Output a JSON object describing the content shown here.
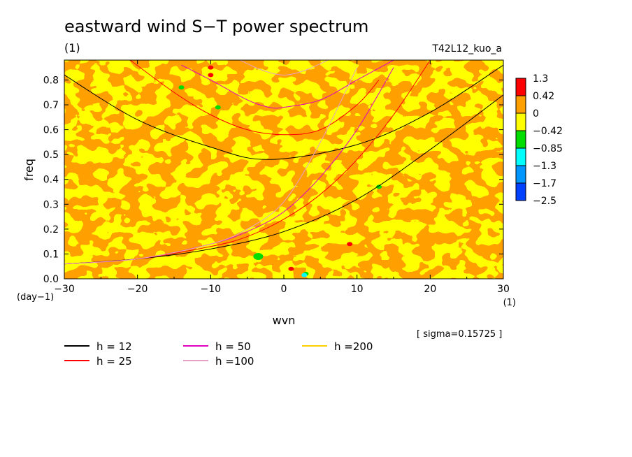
{
  "chart_data": {
    "type": "heatmap",
    "title": "eastward wind S−T power spectrum",
    "subtitle_left": "(1)",
    "subtitle_right": "T42L12_kuo_a",
    "xlabel": "wvn",
    "ylabel": "freq",
    "x_unit": "(1)",
    "y_unit": "(day−1)",
    "xlim": [
      -30,
      30
    ],
    "ylim": [
      0,
      0.88
    ],
    "x_ticks": [
      -30,
      -20,
      -10,
      0,
      10,
      20,
      30
    ],
    "x_tick_labels": [
      "−30",
      "−20",
      "−10",
      "0",
      "10",
      "20",
      "30"
    ],
    "y_ticks": [
      0,
      0.1,
      0.2,
      0.3,
      0.4,
      0.5,
      0.6,
      0.7,
      0.8
    ],
    "y_tick_labels": [
      "0.0",
      "0.1",
      "0.2",
      "0.3",
      "0.4",
      "0.5",
      "0.6",
      "0.7",
      "0.8"
    ],
    "note": "[ sigma=0.15725 ]",
    "colorbar": {
      "labels": [
        "1.3",
        "0.42",
        "0",
        "−0.42",
        "−0.85",
        "−1.3",
        "−1.7",
        "−2.5"
      ],
      "colors": [
        "#ff0000",
        "#ffa000",
        "#ffff00",
        "#00dd00",
        "#00ffff",
        "#0096ff",
        "#0040ff"
      ]
    },
    "field_colors": {
      "low": "#ffff00",
      "high": "#ffa000"
    },
    "series": [
      {
        "name": "h = 12",
        "color": "#000000"
      },
      {
        "name": "h = 25",
        "color": "#ff0000"
      },
      {
        "name": "h = 50",
        "color": "#e000c0"
      },
      {
        "name": "h =100",
        "color": "#e6a0c8"
      },
      {
        "name": "h =200",
        "color": "#ffd000"
      }
    ],
    "curves": [
      {
        "series": "h = 12",
        "kind": "rossby-gravity",
        "x": [
          -30,
          -20,
          -10,
          0,
          10,
          20,
          30
        ],
        "y": [
          0.06,
          0.08,
          0.12,
          0.19,
          0.32,
          0.52,
          0.74
        ]
      },
      {
        "series": "h = 12",
        "kind": "gravity n=1",
        "x": [
          -30,
          -20,
          -10,
          -2,
          10,
          20,
          30
        ],
        "y": [
          0.82,
          0.64,
          0.53,
          0.48,
          0.54,
          0.67,
          0.86
        ]
      },
      {
        "series": "h = 25",
        "kind": "rossby-gravity",
        "x": [
          -30,
          -20,
          -10,
          -5,
          0,
          5,
          10,
          15,
          20
        ],
        "y": [
          0.06,
          0.08,
          0.13,
          0.17,
          0.24,
          0.34,
          0.48,
          0.66,
          0.88
        ]
      },
      {
        "series": "h = 25",
        "kind": "gravity n=1",
        "x": [
          -21,
          -15,
          -10,
          -5,
          0,
          5,
          10,
          13
        ],
        "y": [
          0.88,
          0.75,
          0.66,
          0.6,
          0.58,
          0.6,
          0.7,
          0.8
        ]
      },
      {
        "series": "h = 50",
        "kind": "rossby-gravity",
        "x": [
          -30,
          -20,
          -10,
          -5,
          0,
          5,
          10,
          15
        ],
        "y": [
          0.06,
          0.08,
          0.14,
          0.19,
          0.27,
          0.41,
          0.6,
          0.85
        ]
      },
      {
        "series": "h = 50",
        "kind": "gravity n=1",
        "x": [
          -14,
          -10,
          -5,
          -2,
          0,
          5,
          10,
          15
        ],
        "y": [
          0.86,
          0.8,
          0.72,
          0.69,
          0.69,
          0.72,
          0.8,
          0.88
        ]
      },
      {
        "series": "h =100",
        "kind": "rossby-gravity",
        "x": [
          -30,
          -20,
          -10,
          -5,
          0,
          5,
          10
        ],
        "y": [
          0.06,
          0.08,
          0.14,
          0.2,
          0.31,
          0.55,
          0.85
        ]
      },
      {
        "series": "h =100",
        "kind": "gravity n=1",
        "x": [
          -6,
          -3,
          0,
          3,
          6
        ],
        "y": [
          0.88,
          0.84,
          0.82,
          0.84,
          0.88
        ]
      }
    ],
    "features": [
      {
        "label": "+1.3",
        "x": -10,
        "y": 0.82
      },
      {
        "label": "+1.3",
        "x": -10,
        "y": 0.85
      },
      {
        "label": "+1.3",
        "x": 9,
        "y": 0.14
      },
      {
        "label": "+1.3",
        "x": 1,
        "y": 0.04
      },
      {
        "label": "-0.42",
        "x": -3.5,
        "y": 0.09
      },
      {
        "label": "-0.42",
        "x": 3,
        "y": 0.02
      },
      {
        "label": "-1.3",
        "x": 2.8,
        "y": 0.015
      },
      {
        "label": "-0.42",
        "x": 13,
        "y": 0.37
      },
      {
        "label": "-0.42",
        "x": -9,
        "y": 0.69
      },
      {
        "label": "-0.42",
        "x": -14,
        "y": 0.77
      }
    ]
  }
}
